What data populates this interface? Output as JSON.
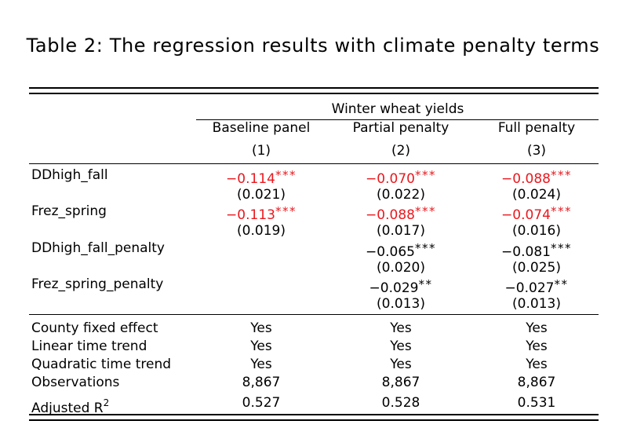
{
  "caption": "Table 2: The regression results with climate penalty terms",
  "group_header": "Winter wheat yields",
  "columns": [
    {
      "name": "Baseline panel",
      "num": "(1)"
    },
    {
      "name": "Partial penalty",
      "num": "(2)"
    },
    {
      "name": "Full penalty",
      "num": "(3)"
    }
  ],
  "rows": [
    {
      "label": "DDhigh_fall",
      "coefs": [
        {
          "v": "−0.114",
          "s": "***"
        },
        {
          "v": "−0.070",
          "s": "***"
        },
        {
          "v": "−0.088",
          "s": "***"
        }
      ],
      "ses": [
        "(0.021)",
        "(0.022)",
        "(0.024)"
      ]
    },
    {
      "label": "Frez_spring",
      "coefs": [
        {
          "v": "−0.113",
          "s": "***"
        },
        {
          "v": "−0.088",
          "s": "***"
        },
        {
          "v": "−0.074",
          "s": "***"
        }
      ],
      "ses": [
        "(0.019)",
        "(0.017)",
        "(0.016)"
      ]
    },
    {
      "label": "DDhigh_fall_penalty",
      "coefs": [
        {
          "v": "",
          "s": ""
        },
        {
          "v": "−0.065",
          "s": "***"
        },
        {
          "v": "−0.081",
          "s": "***"
        }
      ],
      "ses": [
        "",
        "(0.020)",
        "(0.025)"
      ]
    },
    {
      "label": "Frez_spring_penalty",
      "coefs": [
        {
          "v": "",
          "s": ""
        },
        {
          "v": "−0.029",
          "s": "**"
        },
        {
          "v": "−0.027",
          "s": "**"
        }
      ],
      "ses": [
        "",
        "(0.013)",
        "(0.013)"
      ]
    }
  ],
  "highlight_color": "#e8191f",
  "stats": [
    {
      "label": "County fixed effect",
      "values": [
        "Yes",
        "Yes",
        "Yes"
      ]
    },
    {
      "label": "Linear time trend",
      "values": [
        "Yes",
        "Yes",
        "Yes"
      ]
    },
    {
      "label": "Quadratic time trend",
      "values": [
        "Yes",
        "Yes",
        "Yes"
      ]
    },
    {
      "label": "Observations",
      "values": [
        "8,867",
        "8,867",
        "8,867"
      ]
    },
    {
      "label": "Adjusted R",
      "label_sup": "2",
      "values": [
        "0.527",
        "0.528",
        "0.531"
      ]
    }
  ]
}
